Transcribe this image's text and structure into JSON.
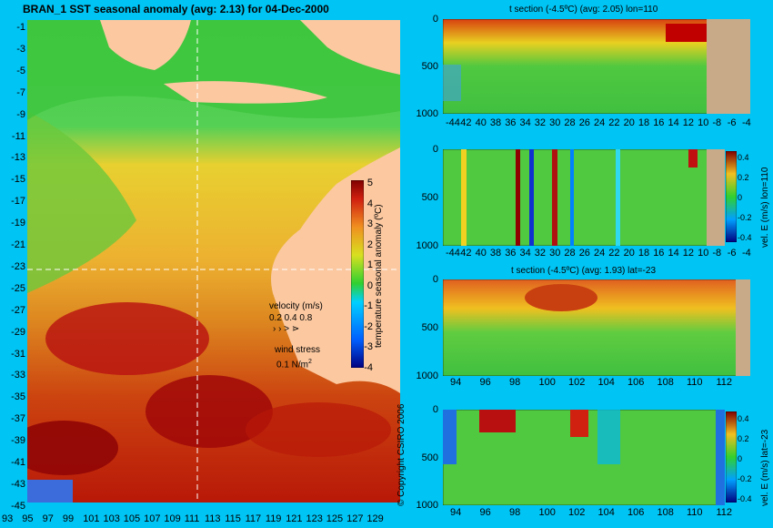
{
  "main_title": "BRAN_1  SST seasonal anomaly  (avg: 2.13) for 04-Dec-2000",
  "copyright": "© Copyright CSIRO 2006",
  "map": {
    "lat_ticks": [
      "-1",
      "-3",
      "-5",
      "-7",
      "-9",
      "-11",
      "-13",
      "-15",
      "-17",
      "-19",
      "-21",
      "-23",
      "-25",
      "-27",
      "-29",
      "-31",
      "-33",
      "-35",
      "-37",
      "-39",
      "-41",
      "-43",
      "-45"
    ],
    "lon_ticks": [
      "93",
      "95",
      "97",
      "99",
      "101",
      "103",
      "105",
      "107",
      "109",
      "111",
      "113",
      "115",
      "117",
      "119",
      "121",
      "123",
      "125",
      "127",
      "129"
    ],
    "colorbar_label": "temperature seasonal anomaly (ºC)",
    "colorbar_ticks": [
      "5",
      "4",
      "3",
      "2",
      "1",
      "0",
      "-1",
      "-2",
      "-3",
      "-4"
    ],
    "velocity_label": "velocity (m/s)",
    "velocity_scale": "0.2 0.4 0.8",
    "wind_label": "wind stress",
    "wind_value": "0.1 N/m",
    "wind_sup": "2"
  },
  "panels": [
    {
      "title": "t section (-4.5ºC) (avg: 2.05) lon=110",
      "x_ticks": [
        "-44",
        "42",
        "40",
        "38",
        "36",
        "34",
        "32",
        "30",
        "28",
        "26",
        "24",
        "22",
        "20",
        "18",
        "16",
        "14",
        "12",
        "10",
        "-8",
        "-6",
        "-4"
      ],
      "y_ticks": [
        "0",
        "500",
        "1000"
      ]
    },
    {
      "title": "",
      "x_ticks": [
        "-44",
        "42",
        "40",
        "38",
        "36",
        "34",
        "32",
        "30",
        "28",
        "26",
        "24",
        "22",
        "20",
        "18",
        "16",
        "14",
        "12",
        "10",
        "-8",
        "-6",
        "-4"
      ],
      "y_ticks": [
        "0",
        "500",
        "1000"
      ],
      "colorbar_label": "vel. E (m/s) lon=110",
      "colorbar_ticks": [
        "0.4",
        "0.2",
        "0",
        "-0.2",
        "-0.4"
      ]
    },
    {
      "title": "t section (-4.5ºC) (avg: 1.93) lat=-23",
      "x_ticks": [
        "94",
        "96",
        "98",
        "100",
        "102",
        "104",
        "106",
        "108",
        "110",
        "112"
      ],
      "y_ticks": [
        "0",
        "500",
        "1000"
      ]
    },
    {
      "title": "",
      "x_ticks": [
        "94",
        "96",
        "98",
        "100",
        "102",
        "104",
        "106",
        "108",
        "110",
        "112"
      ],
      "y_ticks": [
        "0",
        "500",
        "1000"
      ],
      "colorbar_label": "vel. E (m/s) lat=-23",
      "colorbar_ticks": [
        "0.4",
        "0.2",
        "0",
        "-0.2",
        "-0.4"
      ]
    }
  ],
  "colors": {
    "background": "#00c4f4",
    "land": "#fbc8a0",
    "bathymetry": "#c8aa88"
  },
  "chart_data": {
    "type": "heatmap",
    "title": "BRAN_1  SST seasonal anomaly  (avg: 2.13) for 04-Dec-2000",
    "xlim": [
      93,
      130
    ],
    "ylim": [
      -45,
      0
    ],
    "colorbar_range": [
      -4,
      5
    ],
    "section_depth_range": [
      0,
      1050
    ],
    "velocity_colorbar_range": [
      -0.4,
      0.4
    ]
  }
}
